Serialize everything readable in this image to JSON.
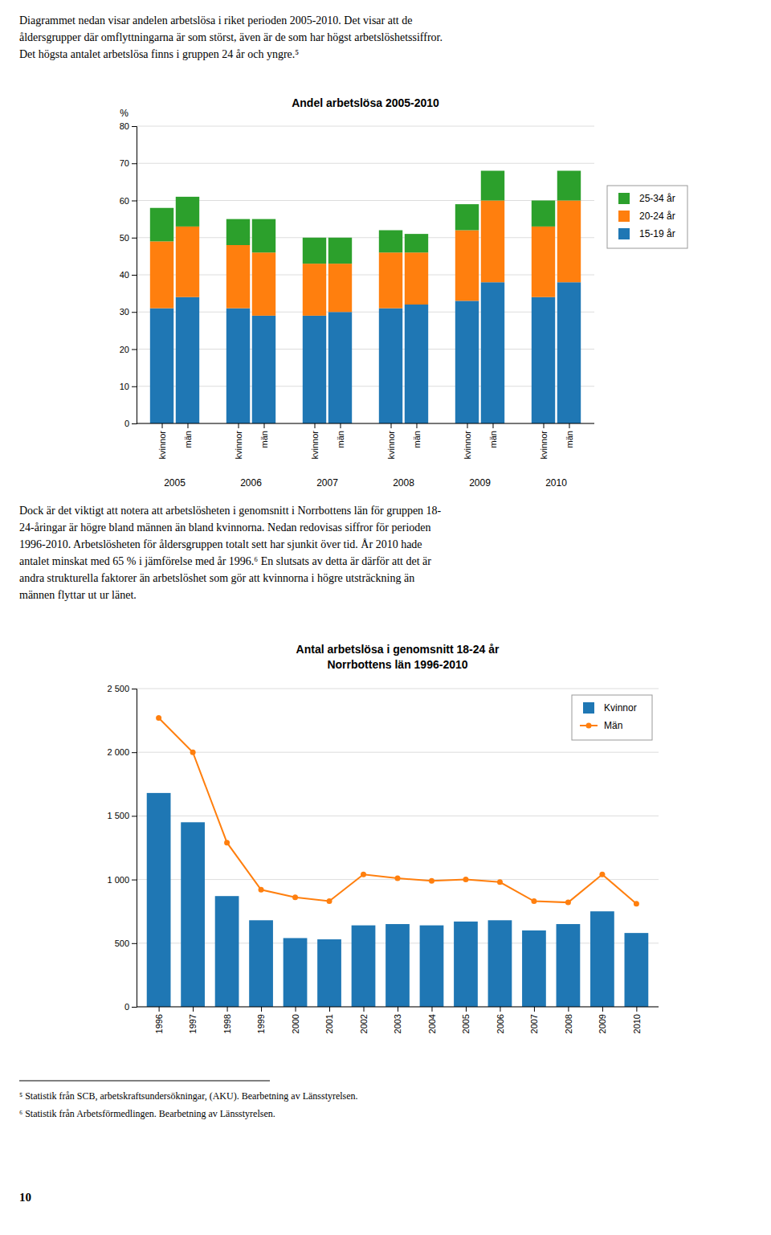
{
  "chart_data": [
    {
      "type": "bar",
      "stacked": true,
      "title": "Andel arbetslösa 2005-2010",
      "y_label": "%",
      "categories": [
        "kvinnor",
        "män",
        "kvinnor",
        "män",
        "kvinnor",
        "män",
        "kvinnor",
        "män",
        "kvinnor",
        "män",
        "kvinnor",
        "män"
      ],
      "category_groups": [
        2005,
        2006,
        2007,
        2008,
        2009,
        2010
      ],
      "series": [
        {
          "name": "15-19 år",
          "values": [
            31,
            34,
            31,
            29,
            29,
            30,
            31,
            32,
            33,
            38,
            34,
            38
          ]
        },
        {
          "name": "20-24 år",
          "values": [
            18,
            19,
            17,
            17,
            14,
            13,
            15,
            14,
            19,
            22,
            19,
            22
          ]
        },
        {
          "name": "25-34 år",
          "values": [
            9,
            8,
            7,
            9,
            7,
            7,
            6,
            5,
            7,
            8,
            7,
            8
          ]
        }
      ],
      "ylim": [
        0,
        80
      ],
      "yticks": [
        0,
        10,
        20,
        30,
        40,
        50,
        60,
        70,
        80
      ],
      "grid": true,
      "legend": "right"
    },
    {
      "type": "bar",
      "title": "Antal arbetslösa i genomsnitt 18-24 år",
      "subtitle": "Norrbottens län 1996-2010",
      "categories": [
        "1996",
        "1997",
        "1998",
        "1999",
        "2000",
        "2001",
        "2002",
        "2003",
        "2004",
        "2005",
        "2006",
        "2007",
        "2008",
        "2009",
        "2010"
      ],
      "series": [
        {
          "name": "Kvinnor",
          "type": "bar",
          "values": [
            1680,
            1450,
            870,
            680,
            540,
            530,
            640,
            650,
            640,
            670,
            680,
            600,
            650,
            750,
            580
          ]
        },
        {
          "name": "Män",
          "type": "line",
          "marker": "circle",
          "values": [
            2270,
            2000,
            1290,
            920,
            860,
            830,
            1040,
            1010,
            990,
            1000,
            980,
            830,
            820,
            1040,
            810
          ]
        }
      ],
      "ylim": [
        0,
        2500
      ],
      "yticks": [
        0,
        500,
        {
          "value": 1000,
          "label": "1 000"
        },
        {
          "value": 1500,
          "label": "1 500"
        },
        {
          "value": 2000,
          "label": "2 000"
        },
        {
          "value": 2500,
          "label": "2 500"
        }
      ],
      "grid": true,
      "legend": "upper right"
    }
  ],
  "paragraphs": [
    [
      "Diagrammet nedan visar andelen arbetslösa i riket perioden 2005-2010. Det visar att de",
      "åldersgrupper där omflyttningarna är som störst, även är de som har högst arbetslöshetssiffror.",
      "Det högsta antalet arbetslösa finns i gruppen 24 år och yngre.⁵"
    ],
    [
      "Dock är det viktigt att notera att arbetslösheten i genomsnitt i Norrbottens län för gruppen 18-",
      "24-åringar är högre bland männen än bland kvinnorna. Nedan redovisas siffror för perioden",
      "1996-2010. Arbetslösheten för åldersgruppen totalt sett har sjunkit över tid. År 2010 hade",
      "antalet minskat med 65 % i jämförelse med år 1996.⁶ En slutsats av detta är därför att det är",
      "andra strukturella faktorer än arbetslöshet som gör att kvinnorna i högre utsträckning än",
      "männen flyttar ut ur länet."
    ]
  ],
  "footnotes": [
    "⁵ Statistik från SCB, arbetskraftsundersökningar, (AKU). Bearbetning av Länsstyrelsen.",
    "⁶ Statistik från Arbetsförmedlingen. Bearbetning av Länsstyrelsen."
  ],
  "page_number": "10"
}
